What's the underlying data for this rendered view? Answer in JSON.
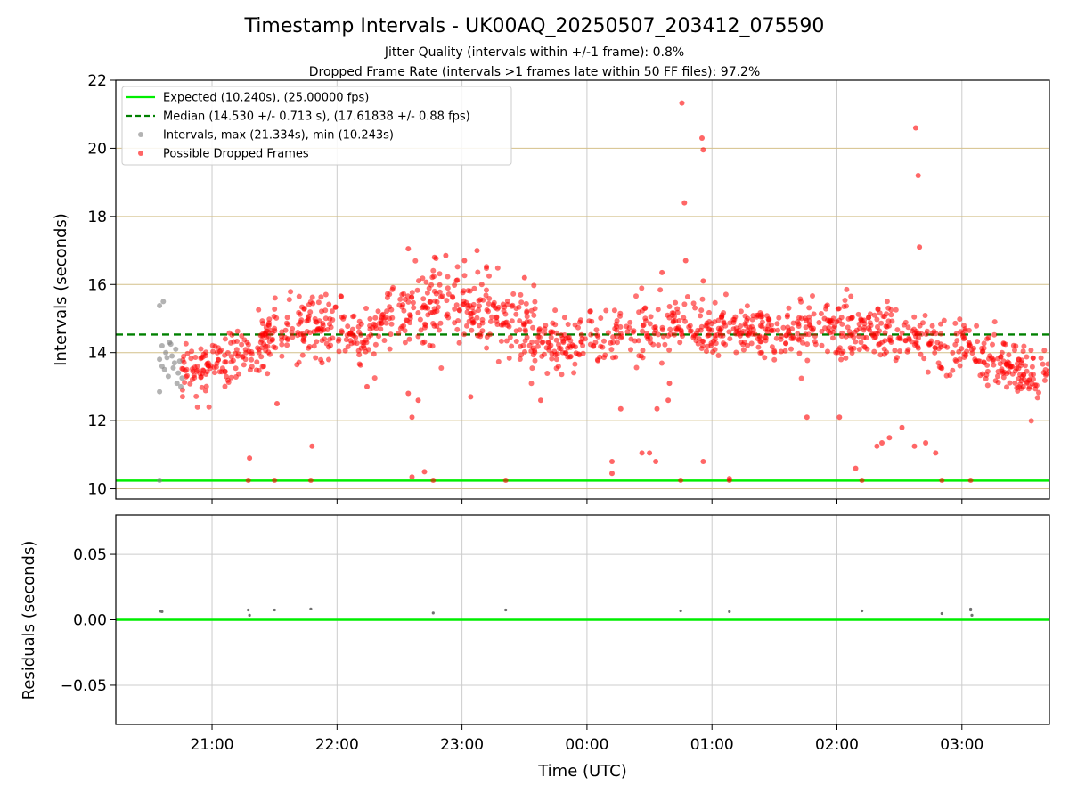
{
  "chart_data": {
    "type": "scatter",
    "title": "Timestamp Intervals - UK00AQ_20250507_203412_075590",
    "subtitle_line1": "Jitter Quality (intervals within +/-1 frame): 0.8%",
    "subtitle_line2": "Dropped Frame Rate (intervals >1 frames late within 50 FF files): 97.2%",
    "xlabel": "Time (UTC)",
    "x_ticks": [
      "21:00",
      "22:00",
      "23:00",
      "00:00",
      "01:00",
      "02:00",
      "03:00"
    ],
    "x_tick_hours": [
      21,
      22,
      23,
      24,
      25,
      26,
      27
    ],
    "xlim_hours": [
      20.23,
      27.7
    ],
    "top_panel": {
      "ylabel": "Intervals (seconds)",
      "ylim": [
        9.7,
        22
      ],
      "y_ticks": [
        10,
        12,
        14,
        16,
        18,
        20,
        22
      ],
      "y_tick_labels": [
        "10",
        "12",
        "14",
        "16",
        "18",
        "20",
        "22"
      ],
      "horizontal_gridlines": [
        10,
        12,
        14,
        16,
        18,
        20
      ],
      "expected_value": 10.24,
      "median_value": 14.53,
      "legend": {
        "expected": "Expected (10.240s), (25.00000 fps)",
        "median": "Median (14.530 +/- 0.713 s), (17.61838 +/- 0.88 fps)",
        "intervals": "Intervals, max (21.334s), min (10.243s)",
        "dropped": "Possible Dropped Frames"
      },
      "series": [
        {
          "name": "Intervals, max (21.334s), min (10.243s)",
          "color": "#808080",
          "points": [
            [
              20.58,
              15.38
            ],
            [
              20.61,
              15.5
            ],
            [
              20.58,
              12.85
            ],
            [
              20.58,
              10.25
            ],
            [
              20.58,
              13.8
            ],
            [
              20.6,
              13.6
            ],
            [
              20.62,
              13.5
            ],
            [
              20.63,
              14.0
            ],
            [
              20.65,
              13.3
            ],
            [
              20.66,
              14.3
            ],
            [
              20.68,
              13.9
            ],
            [
              20.7,
              13.7
            ],
            [
              20.72,
              13.1
            ],
            [
              20.73,
              13.4
            ],
            [
              20.75,
              13.0
            ],
            [
              20.6,
              14.2
            ],
            [
              20.64,
              13.85
            ],
            [
              20.67,
              14.25
            ],
            [
              20.69,
              13.55
            ],
            [
              20.71,
              14.1
            ],
            [
              20.74,
              13.75
            ],
            [
              20.76,
              13.25
            ]
          ]
        },
        {
          "name": "Possible Dropped Frames",
          "color": "#ff0000",
          "band": [
            [
              20.75,
              13.4
            ],
            [
              21.0,
              13.5
            ],
            [
              21.3,
              14.1
            ],
            [
              21.6,
              14.7
            ],
            [
              21.9,
              14.8
            ],
            [
              22.2,
              14.4
            ],
            [
              22.5,
              15.2
            ],
            [
              22.85,
              15.6
            ],
            [
              23.2,
              15.2
            ],
            [
              23.5,
              14.6
            ],
            [
              23.8,
              14.2
            ],
            [
              24.2,
              14.5
            ],
            [
              24.6,
              14.7
            ],
            [
              25.0,
              14.6
            ],
            [
              25.5,
              14.6
            ],
            [
              26.0,
              14.7
            ],
            [
              26.4,
              14.6
            ],
            [
              26.8,
              14.2
            ],
            [
              27.1,
              14.0
            ],
            [
              27.35,
              13.6
            ],
            [
              27.7,
              13.2
            ]
          ],
          "band_count": 1350,
          "outliers": [
            [
              21.29,
              10.25
            ],
            [
              21.5,
              10.25
            ],
            [
              21.79,
              10.25
            ],
            [
              22.77,
              10.25
            ],
            [
              23.35,
              10.25
            ],
            [
              24.75,
              10.25
            ],
            [
              25.14,
              10.25
            ],
            [
              26.2,
              10.25
            ],
            [
              26.84,
              10.25
            ],
            [
              27.07,
              10.25
            ],
            [
              21.3,
              10.9
            ],
            [
              21.8,
              11.25
            ],
            [
              22.7,
              10.5
            ],
            [
              22.6,
              10.35
            ],
            [
              22.6,
              12.1
            ],
            [
              22.65,
              12.6
            ],
            [
              22.57,
              12.8
            ],
            [
              21.52,
              12.5
            ],
            [
              22.24,
              13.0
            ],
            [
              23.07,
              12.7
            ],
            [
              23.63,
              12.6
            ],
            [
              24.27,
              12.35
            ],
            [
              24.2,
              10.8
            ],
            [
              24.2,
              10.45
            ],
            [
              24.44,
              11.05
            ],
            [
              24.5,
              11.05
            ],
            [
              24.55,
              10.8
            ],
            [
              24.56,
              12.35
            ],
            [
              24.65,
              12.6
            ],
            [
              24.66,
              13.1
            ],
            [
              24.76,
              21.33
            ],
            [
              24.78,
              18.4
            ],
            [
              24.79,
              16.7
            ],
            [
              24.92,
              20.3
            ],
            [
              24.93,
              19.95
            ],
            [
              24.93,
              16.1
            ],
            [
              24.93,
              10.8
            ],
            [
              25.14,
              10.3
            ],
            [
              25.76,
              12.1
            ],
            [
              26.02,
              12.1
            ],
            [
              26.15,
              10.6
            ],
            [
              26.32,
              11.25
            ],
            [
              26.36,
              11.35
            ],
            [
              26.42,
              11.5
            ],
            [
              26.52,
              11.8
            ],
            [
              26.62,
              11.25
            ],
            [
              26.71,
              11.35
            ],
            [
              26.79,
              11.05
            ],
            [
              26.63,
              20.6
            ],
            [
              26.65,
              19.2
            ],
            [
              26.66,
              17.1
            ],
            [
              22.57,
              17.05
            ],
            [
              22.78,
              16.8
            ],
            [
              22.87,
              16.85
            ],
            [
              23.02,
              16.7
            ],
            [
              23.12,
              17.0
            ],
            [
              23.5,
              16.2
            ],
            [
              24.6,
              16.35
            ],
            [
              25.9,
              15.0
            ],
            [
              26.0,
              14.9
            ],
            [
              21.88,
              13.7
            ]
          ]
        }
      ]
    },
    "bottom_panel": {
      "ylabel": "Residuals (seconds)",
      "ylim": [
        -0.08,
        0.08
      ],
      "y_ticks": [
        -0.05,
        0.0,
        0.05
      ],
      "y_tick_labels": [
        "−0.05",
        "0.00",
        "0.05"
      ],
      "zero_line_color": "#00ee00",
      "points": [
        [
          20.59,
          0.0065
        ],
        [
          20.6,
          0.0062
        ],
        [
          21.29,
          0.0075
        ],
        [
          21.3,
          0.0035
        ],
        [
          21.5,
          0.0075
        ],
        [
          21.79,
          0.0083
        ],
        [
          22.77,
          0.0052
        ],
        [
          23.35,
          0.0075
        ],
        [
          24.75,
          0.0068
        ],
        [
          25.14,
          0.0062
        ],
        [
          26.2,
          0.0068
        ],
        [
          26.84,
          0.0048
        ],
        [
          27.07,
          0.0082
        ],
        [
          27.07,
          0.0075
        ],
        [
          27.08,
          0.0035
        ]
      ]
    },
    "colors": {
      "expected_line": "#00ee00",
      "median_line": "#008000",
      "y_gridlines_top": "#d4c08a",
      "x_gridlines": "#cccccc",
      "residual_points": "#707070"
    }
  }
}
